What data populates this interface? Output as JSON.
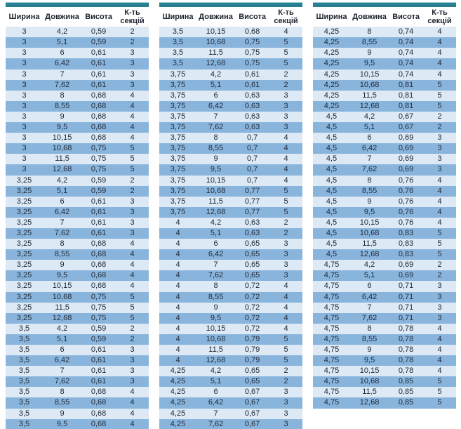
{
  "colors": {
    "accent_bar": "#26808f",
    "row_light": "#dde9f5",
    "row_blue": "#89b5dd",
    "text": "#202a38"
  },
  "table_columns": [
    "Ширина",
    "Довжина",
    "Висота",
    "К-ть секцій"
  ],
  "tables": [
    {
      "name": "size-table-1",
      "rows": [
        [
          "3",
          "4,2",
          "0,59",
          "2"
        ],
        [
          "3",
          "5,1",
          "0,59",
          "2"
        ],
        [
          "3",
          "6",
          "0,61",
          "3"
        ],
        [
          "3",
          "6,42",
          "0,61",
          "3"
        ],
        [
          "3",
          "7",
          "0,61",
          "3"
        ],
        [
          "3",
          "7,62",
          "0,61",
          "3"
        ],
        [
          "3",
          "8",
          "0,68",
          "4"
        ],
        [
          "3",
          "8,55",
          "0,68",
          "4"
        ],
        [
          "3",
          "9",
          "0,68",
          "4"
        ],
        [
          "3",
          "9,5",
          "0,68",
          "4"
        ],
        [
          "3",
          "10,15",
          "0,68",
          "4"
        ],
        [
          "3",
          "10,68",
          "0,75",
          "5"
        ],
        [
          "3",
          "11,5",
          "0,75",
          "5"
        ],
        [
          "3",
          "12,68",
          "0,75",
          "5"
        ],
        [
          "3,25",
          "4,2",
          "0,59",
          "2"
        ],
        [
          "3,25",
          "5,1",
          "0,59",
          "2"
        ],
        [
          "3,25",
          "6",
          "0,61",
          "3"
        ],
        [
          "3,25",
          "6,42",
          "0,61",
          "3"
        ],
        [
          "3,25",
          "7",
          "0,61",
          "3"
        ],
        [
          "3,25",
          "7,62",
          "0,61",
          "3"
        ],
        [
          "3,25",
          "8",
          "0,68",
          "4"
        ],
        [
          "3,25",
          "8,55",
          "0,68",
          "4"
        ],
        [
          "3,25",
          "9",
          "0,68",
          "4"
        ],
        [
          "3,25",
          "9,5",
          "0,68",
          "4"
        ],
        [
          "3,25",
          "10,15",
          "0,68",
          "4"
        ],
        [
          "3,25",
          "10,68",
          "0,75",
          "5"
        ],
        [
          "3,25",
          "11,5",
          "0,75",
          "5"
        ],
        [
          "3,25",
          "12,68",
          "0,75",
          "5"
        ],
        [
          "3,5",
          "4,2",
          "0,59",
          "2"
        ],
        [
          "3,5",
          "5,1",
          "0,59",
          "2"
        ],
        [
          "3,5",
          "6",
          "0,61",
          "3"
        ],
        [
          "3,5",
          "6,42",
          "0,61",
          "3"
        ],
        [
          "3,5",
          "7",
          "0,61",
          "3"
        ],
        [
          "3,5",
          "7,62",
          "0,61",
          "3"
        ],
        [
          "3,5",
          "8",
          "0,68",
          "4"
        ],
        [
          "3,5",
          "8,55",
          "0,68",
          "4"
        ],
        [
          "3,5",
          "9",
          "0,68",
          "4"
        ],
        [
          "3,5",
          "9,5",
          "0,68",
          "4"
        ]
      ]
    },
    {
      "name": "size-table-2",
      "rows": [
        [
          "3,5",
          "10,15",
          "0,68",
          "4"
        ],
        [
          "3,5",
          "10,68",
          "0,75",
          "5"
        ],
        [
          "3,5",
          "11,5",
          "0,75",
          "5"
        ],
        [
          "3,5",
          "12,68",
          "0,75",
          "5"
        ],
        [
          "3,75",
          "4,2",
          "0,61",
          "2"
        ],
        [
          "3,75",
          "5,1",
          "0,61",
          "2"
        ],
        [
          "3,75",
          "6",
          "0,63",
          "3"
        ],
        [
          "3,75",
          "6,42",
          "0,63",
          "3"
        ],
        [
          "3,75",
          "7",
          "0,63",
          "3"
        ],
        [
          "3,75",
          "7,62",
          "0,63",
          "3"
        ],
        [
          "3,75",
          "8",
          "0,7",
          "4"
        ],
        [
          "3,75",
          "8,55",
          "0,7",
          "4"
        ],
        [
          "3,75",
          "9",
          "0,7",
          "4"
        ],
        [
          "3,75",
          "9,5",
          "0,7",
          "4"
        ],
        [
          "3,75",
          "10,15",
          "0,7",
          "4"
        ],
        [
          "3,75",
          "10,68",
          "0,77",
          "5"
        ],
        [
          "3,75",
          "11,5",
          "0,77",
          "5"
        ],
        [
          "3,75",
          "12,68",
          "0,77",
          "5"
        ],
        [
          "4",
          "4,2",
          "0,63",
          "2"
        ],
        [
          "4",
          "5,1",
          "0,63",
          "2"
        ],
        [
          "4",
          "6",
          "0,65",
          "3"
        ],
        [
          "4",
          "6,42",
          "0,65",
          "3"
        ],
        [
          "4",
          "7",
          "0,65",
          "3"
        ],
        [
          "4",
          "7,62",
          "0,65",
          "3"
        ],
        [
          "4",
          "8",
          "0,72",
          "4"
        ],
        [
          "4",
          "8,55",
          "0,72",
          "4"
        ],
        [
          "4",
          "9",
          "0,72",
          "4"
        ],
        [
          "4",
          "9,5",
          "0,72",
          "4"
        ],
        [
          "4",
          "10,15",
          "0,72",
          "4"
        ],
        [
          "4",
          "10,68",
          "0,79",
          "5"
        ],
        [
          "4",
          "11,5",
          "0,79",
          "5"
        ],
        [
          "4",
          "12,68",
          "0,79",
          "5"
        ],
        [
          "4,25",
          "4,2",
          "0,65",
          "2"
        ],
        [
          "4,25",
          "5,1",
          "0,65",
          "2"
        ],
        [
          "4,25",
          "6",
          "0,67",
          "3"
        ],
        [
          "4,25",
          "6,42",
          "0,67",
          "3"
        ],
        [
          "4,25",
          "7",
          "0,67",
          "3"
        ],
        [
          "4,25",
          "7,62",
          "0,67",
          "3"
        ]
      ]
    },
    {
      "name": "size-table-3",
      "rows": [
        [
          "4,25",
          "8",
          "0,74",
          "4"
        ],
        [
          "4,25",
          "8,55",
          "0,74",
          "4"
        ],
        [
          "4,25",
          "9",
          "0,74",
          "4"
        ],
        [
          "4,25",
          "9,5",
          "0,74",
          "4"
        ],
        [
          "4,25",
          "10,15",
          "0,74",
          "4"
        ],
        [
          "4,25",
          "10,68",
          "0,81",
          "5"
        ],
        [
          "4,25",
          "11,5",
          "0,81",
          "5"
        ],
        [
          "4,25",
          "12,68",
          "0,81",
          "5"
        ],
        [
          "4,5",
          "4,2",
          "0,67",
          "2"
        ],
        [
          "4,5",
          "5,1",
          "0,67",
          "2"
        ],
        [
          "4,5",
          "6",
          "0,69",
          "3"
        ],
        [
          "4,5",
          "6,42",
          "0,69",
          "3"
        ],
        [
          "4,5",
          "7",
          "0,69",
          "3"
        ],
        [
          "4,5",
          "7,62",
          "0,69",
          "3"
        ],
        [
          "4,5",
          "8",
          "0,76",
          "4"
        ],
        [
          "4,5",
          "8,55",
          "0,76",
          "4"
        ],
        [
          "4,5",
          "9",
          "0,76",
          "4"
        ],
        [
          "4,5",
          "9,5",
          "0,76",
          "4"
        ],
        [
          "4,5",
          "10,15",
          "0,76",
          "4"
        ],
        [
          "4,5",
          "10,68",
          "0,83",
          "5"
        ],
        [
          "4,5",
          "11,5",
          "0,83",
          "5"
        ],
        [
          "4,5",
          "12,68",
          "0,83",
          "5"
        ],
        [
          "4,75",
          "4,2",
          "0,69",
          "2"
        ],
        [
          "4,75",
          "5,1",
          "0,69",
          "2"
        ],
        [
          "4,75",
          "6",
          "0,71",
          "3"
        ],
        [
          "4,75",
          "6,42",
          "0,71",
          "3"
        ],
        [
          "4,75",
          "7",
          "0,71",
          "3"
        ],
        [
          "4,75",
          "7,62",
          "0,71",
          "3"
        ],
        [
          "4,75",
          "8",
          "0,78",
          "4"
        ],
        [
          "4,75",
          "8,55",
          "0,78",
          "4"
        ],
        [
          "4,75",
          "9",
          "0,78",
          "4"
        ],
        [
          "4,75",
          "9,5",
          "0,78",
          "4"
        ],
        [
          "4,75",
          "10,15",
          "0,78",
          "4"
        ],
        [
          "4,75",
          "10,68",
          "0,85",
          "5"
        ],
        [
          "4,75",
          "11,5",
          "0,85",
          "5"
        ],
        [
          "4,75",
          "12,68",
          "0,85",
          "5"
        ]
      ]
    }
  ]
}
